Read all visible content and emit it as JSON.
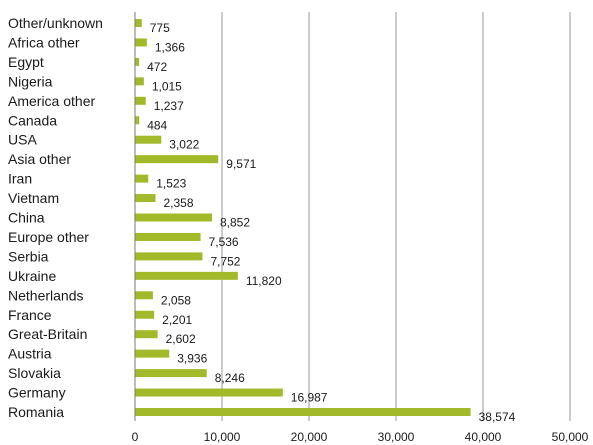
{
  "colors": {
    "bar": "#a2b92a",
    "grid": "#9a9a9a",
    "axis": "#7a7a7a"
  },
  "chart_data": {
    "type": "bar",
    "orientation": "horizontal",
    "categories": [
      "Other/unknown",
      "Africa other",
      "Egypt",
      "Nigeria",
      "America other",
      "Canada",
      "USA",
      "Asia other",
      "Iran",
      "Vietnam",
      "China",
      "Europe other",
      "Serbia",
      "Ukraine",
      "Netherlands",
      "France",
      "Great-Britain",
      "Austria",
      "Slovakia",
      "Germany",
      "Romania"
    ],
    "values": [
      775,
      1366,
      472,
      1015,
      1237,
      484,
      3022,
      9571,
      1523,
      2358,
      8852,
      7536,
      7752,
      11820,
      2058,
      2201,
      2602,
      3936,
      8246,
      16987,
      38574
    ],
    "value_labels": [
      "775",
      "1,366",
      "472",
      "1,015",
      "1,237",
      "484",
      "3,022",
      "9,571",
      "1,523",
      "2,358",
      "8,852",
      "7,536",
      "7,752",
      "11,820",
      "2,058",
      "2,201",
      "2,602",
      "3,936",
      "8,246",
      "16,987",
      "38,574"
    ],
    "xlim": [
      0,
      50000
    ],
    "xticks": [
      0,
      10000,
      20000,
      30000,
      40000,
      50000
    ],
    "xtick_labels": [
      "0",
      "10,000",
      "20,000",
      "30,000",
      "40,000",
      "50,000"
    ],
    "grid": true,
    "legend": "none"
  }
}
